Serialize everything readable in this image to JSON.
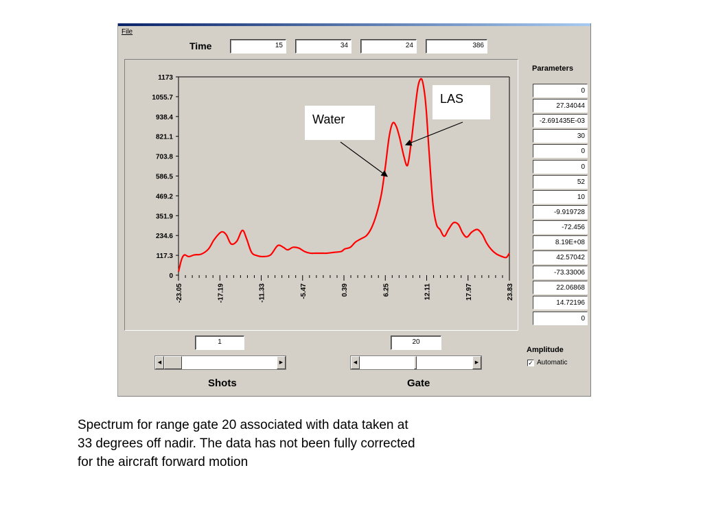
{
  "window": {
    "menu": {
      "file_label": "File"
    },
    "time": {
      "label": "Time",
      "values": [
        "15",
        "34",
        "24",
        "386"
      ]
    },
    "chart_data": {
      "type": "line",
      "title": "",
      "xlabel": "",
      "ylabel": "",
      "y_ticks": [
        "1173",
        "1055.7",
        "938.4",
        "821.1",
        "703.8",
        "586.5",
        "469.2",
        "351.9",
        "234.6",
        "117.3",
        "0"
      ],
      "x_ticks": [
        "-23.05",
        "-17.19",
        "-11.33",
        "-5.47",
        "0.39",
        "6.25",
        "12.11",
        "17.97",
        "23.83"
      ],
      "ylim": [
        0,
        1173
      ],
      "xlim": [
        -23.05,
        23.83
      ],
      "grid": false,
      "series": [
        {
          "color": "#ff0000",
          "x": [
            -23.05,
            -22.6,
            -22.2,
            -21.6,
            -20.8,
            -19.8,
            -18.8,
            -18.0,
            -17.0,
            -16.3,
            -15.6,
            -14.8,
            -14.0,
            -13.4,
            -12.7,
            -11.9,
            -11.0,
            -10.0,
            -9.0,
            -8.2,
            -7.6,
            -6.8,
            -6.0,
            -5.2,
            -4.4,
            -3.6,
            -2.8,
            -2.0,
            -1.0,
            0.0,
            0.5,
            1.3,
            2.0,
            2.8,
            3.6,
            4.3,
            5.0,
            5.7,
            6.25,
            6.8,
            7.3,
            7.8,
            8.3,
            8.9,
            9.4,
            9.9,
            10.4,
            10.9,
            11.4,
            11.8,
            12.1,
            12.5,
            13.0,
            13.5,
            14.0,
            14.6,
            15.2,
            15.9,
            16.6,
            17.2,
            17.8,
            18.5,
            19.3,
            20.0,
            20.6,
            21.3,
            22.0,
            22.8,
            23.4,
            23.83
          ],
          "y": [
            20,
            95,
            120,
            110,
            120,
            125,
            155,
            210,
            255,
            240,
            185,
            200,
            265,
            215,
            135,
            115,
            110,
            120,
            175,
            165,
            150,
            165,
            160,
            140,
            130,
            130,
            130,
            130,
            135,
            140,
            155,
            165,
            195,
            215,
            235,
            280,
            360,
            480,
            640,
            820,
            900,
            880,
            810,
            700,
            650,
            780,
            960,
            1120,
            1160,
            1080,
            950,
            700,
            420,
            300,
            270,
            230,
            270,
            310,
            300,
            250,
            225,
            255,
            270,
            240,
            190,
            150,
            125,
            110,
            105,
            130
          ]
        }
      ]
    },
    "annotations": {
      "las_label": "LAS",
      "water_label": "Water"
    },
    "parameters": {
      "title": "Parameters",
      "values": [
        "0",
        "27.34044",
        "-2.691435E-03",
        "30",
        "0",
        "0",
        "52",
        "10",
        "-9.919728",
        "-72.456",
        "8.19E+08",
        "42.57042",
        "-73.33006",
        "22.06868",
        "14.72196",
        "0"
      ]
    },
    "shots": {
      "label": "Shots",
      "value": "1"
    },
    "gate": {
      "label": "Gate",
      "value": "20"
    },
    "amplitude": {
      "title": "Amplitude",
      "automatic_label": "Automatic",
      "automatic_checked": true,
      "check_glyph": "✓"
    }
  },
  "caption": "Spectrum for  range gate 20 associated with data taken at\n33 degrees off nadir. The data has not been fully corrected\nfor the aircraft forward motion"
}
